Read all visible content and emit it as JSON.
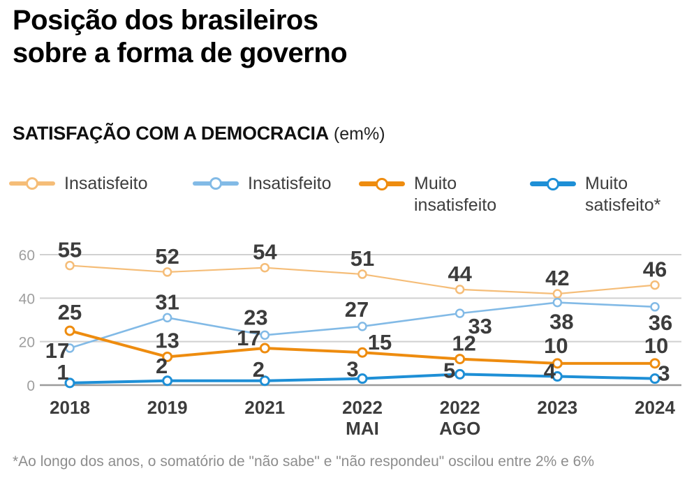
{
  "page": {
    "title": "Posição dos brasileiros\nsobre a forma de governo",
    "section_heading": "SATISFAÇÃO COM A DEMOCRACIA",
    "section_heading_suffix": "(em%)",
    "footnote": "*Ao longo dos anos, o somatório de \"não sabe\" e \"não respondeu\" oscilou entre 2% e 6%"
  },
  "colors": {
    "background": "#ffffff",
    "title_text": "#000000",
    "data_label_text": "#3c3c3c",
    "axis_tick_text": "#9e9e9e",
    "x_label_text": "#3c3c3c",
    "legend_text": "#3d3d3d",
    "footnote_text": "#8d8d8d",
    "gridline": "#d0d0d0",
    "axis_line": "#9b9b9b"
  },
  "chart_data": {
    "type": "line",
    "title": "SATISFAÇÃO COM A DEMOCRACIA (em%)",
    "xlabel": "",
    "ylabel": "",
    "ylim": [
      0,
      60
    ],
    "y_ticks": [
      0,
      20,
      40,
      60
    ],
    "grid": true,
    "legend_position": "top",
    "categories": [
      "2018",
      "2019",
      "2021",
      "2022 MAI",
      "2022 AGO",
      "2023",
      "2024"
    ],
    "x_tick_lines": [
      [
        "2018"
      ],
      [
        "2019"
      ],
      [
        "2021"
      ],
      [
        "2022",
        "MAI"
      ],
      [
        "2022",
        "AGO"
      ],
      [
        "2023"
      ],
      [
        "2024"
      ]
    ],
    "series": [
      {
        "name": "Insatisfeito",
        "color": "#F5BD78",
        "line_width": 2.2,
        "values": [
          55,
          52,
          54,
          51,
          44,
          42,
          46
        ]
      },
      {
        "name": "Insatisfeito",
        "color": "#82BAE6",
        "line_width": 2.6,
        "values": [
          17,
          31,
          23,
          27,
          33,
          38,
          36
        ]
      },
      {
        "name": "Muito\ninsatisfeito",
        "color": "#EE8C0F",
        "line_width": 4,
        "values": [
          25,
          13,
          17,
          15,
          12,
          10,
          10
        ]
      },
      {
        "name": "Muito\nsatisfeito*",
        "color": "#1E8FD6",
        "line_width": 4,
        "values": [
          1,
          2,
          2,
          3,
          5,
          4,
          3
        ]
      }
    ],
    "label_offsets": [
      [
        null,
        null,
        null,
        null,
        null,
        null,
        null
      ],
      [
        [
          -18,
          14
        ],
        null,
        [
          -13,
          -15
        ],
        [
          -8,
          -14
        ],
        [
          29,
          29
        ],
        [
          6,
          38
        ],
        [
          8,
          33
        ]
      ],
      [
        [
          0,
          -16
        ],
        [
          0,
          -13
        ],
        [
          -23,
          -4
        ],
        [
          25,
          -4
        ],
        [
          6,
          -12
        ],
        [
          -2,
          -15
        ],
        [
          2,
          -15
        ]
      ],
      [
        [
          -10,
          -5
        ],
        [
          -8,
          -11
        ],
        [
          -9,
          -6
        ],
        [
          -14,
          -3
        ],
        [
          -15,
          5
        ],
        [
          -11,
          3
        ],
        [
          13,
          3
        ]
      ]
    ]
  }
}
